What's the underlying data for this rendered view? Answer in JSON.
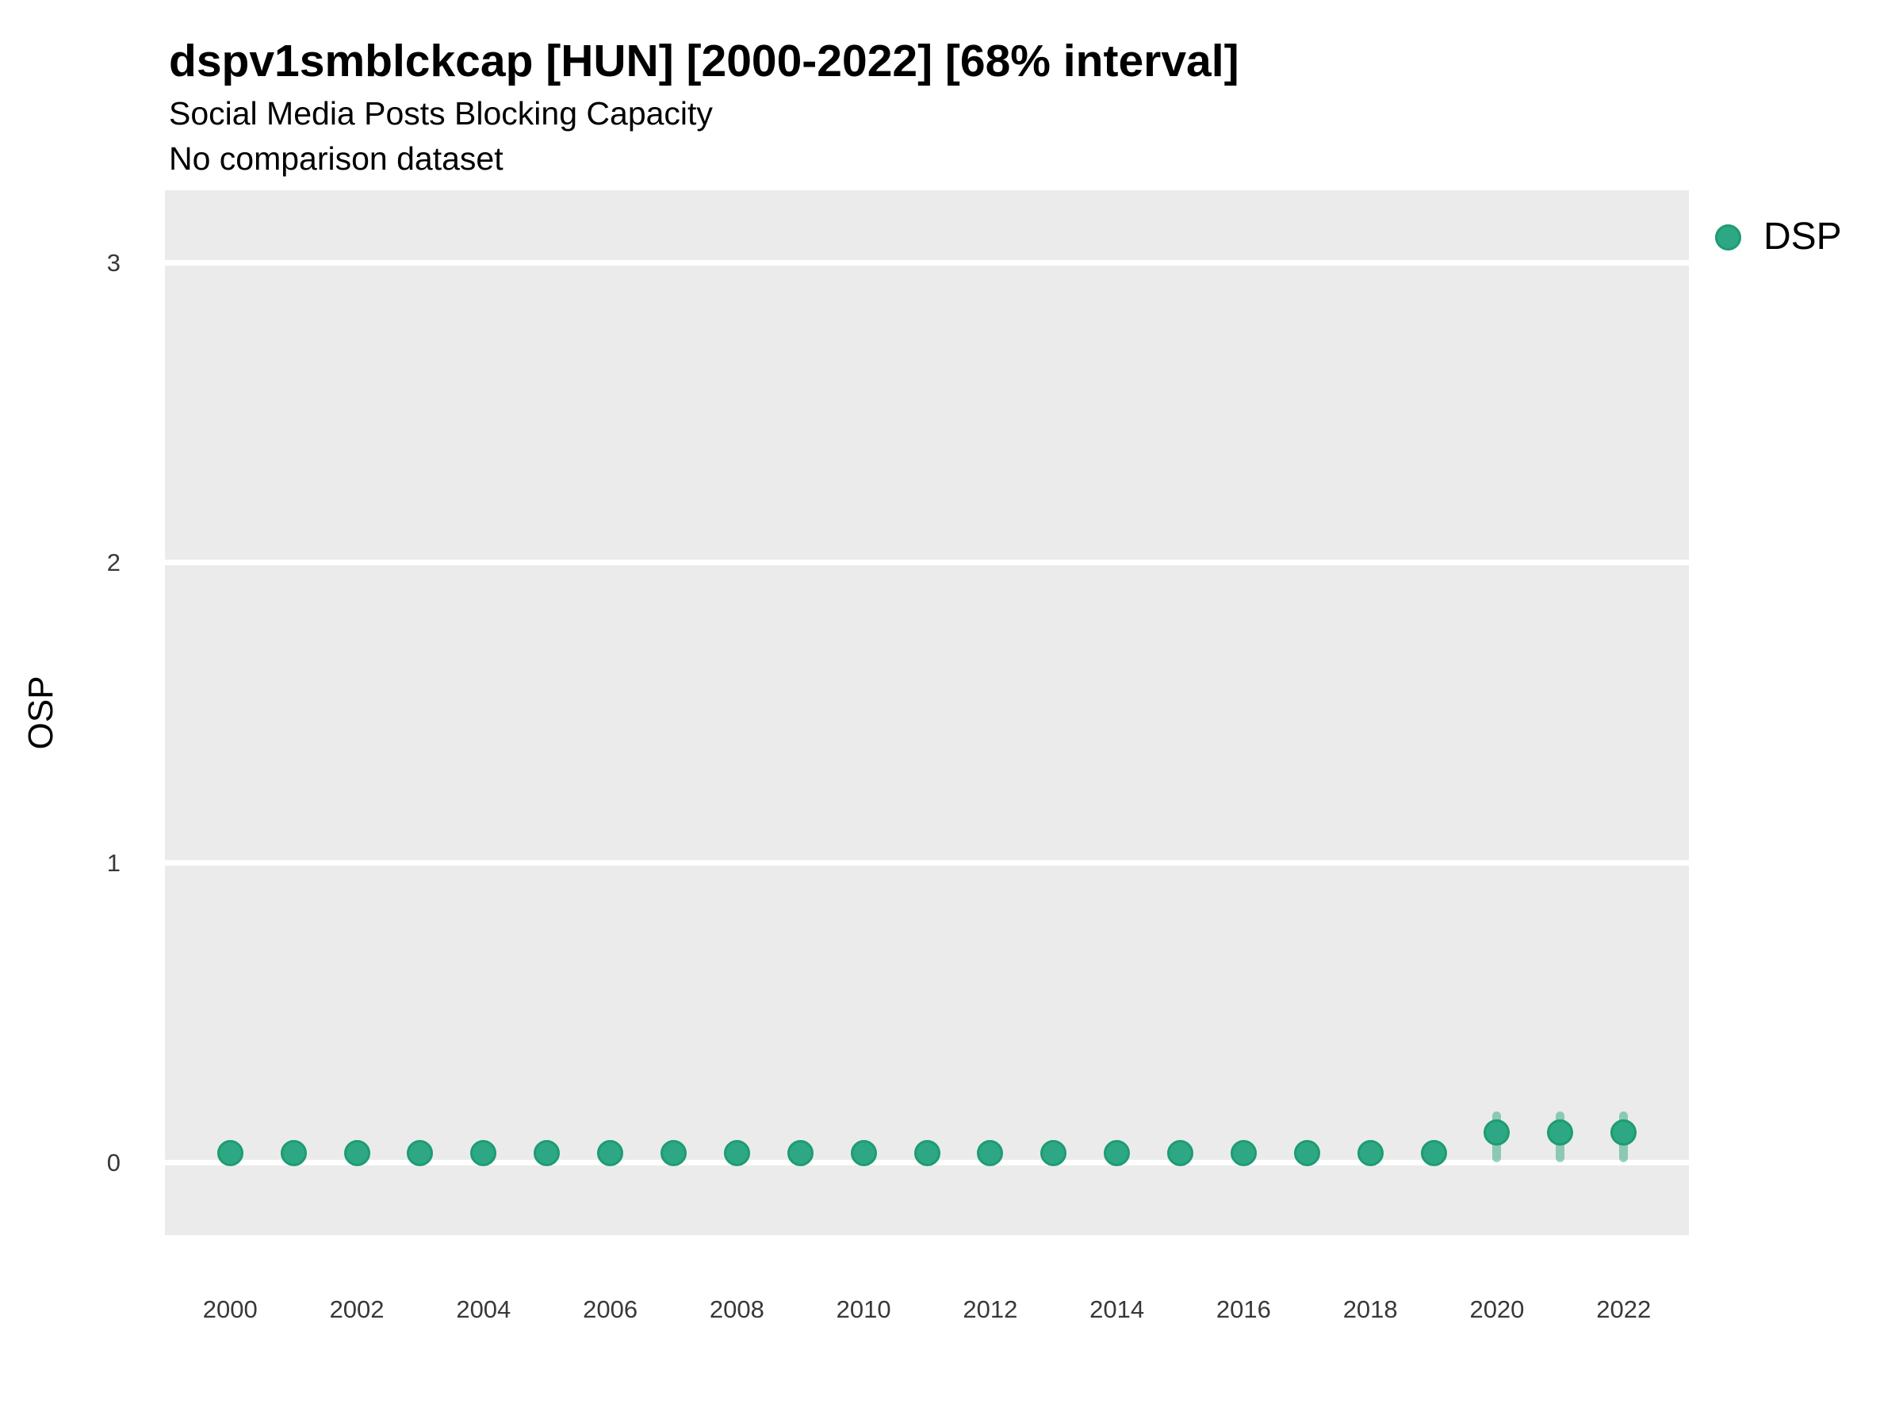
{
  "header": {
    "title": "dspv1smblckcap [HUN] [2000-2022] [68% interval]",
    "subtitle": "Social Media Posts Blocking Capacity",
    "note": "No comparison dataset"
  },
  "legend": {
    "position": "right",
    "items": [
      {
        "label": "DSP",
        "swatch": "circle"
      }
    ]
  },
  "colors": {
    "panel_background": "#EBEBEB",
    "gridline": "#FFFFFF",
    "point_fill": "#2EA884",
    "point_stroke": "#1D9C72",
    "interval_bar": "rgba(44, 167, 129, 0.5)",
    "tick_text": "#383838",
    "title_text": "#000000"
  },
  "chart_data": {
    "type": "scatter",
    "title": "dspv1smblckcap [HUN] [2000-2022] [68% interval]",
    "subtitle": "Social Media Posts Blocking Capacity",
    "note": "No comparison dataset",
    "interval_label": "68% interval",
    "xlabel": "",
    "ylabel": "OSP",
    "grid": "horizontal-major-only",
    "legend_position": "right",
    "xlim": [
      1998.97,
      2023.03
    ],
    "ylim": [
      -0.243,
      3.243
    ],
    "x_ticks": [
      2000,
      2002,
      2004,
      2006,
      2008,
      2010,
      2012,
      2014,
      2016,
      2018,
      2020,
      2022
    ],
    "y_ticks": [
      0,
      1,
      2,
      3
    ],
    "series": [
      {
        "name": "DSP",
        "points": [
          {
            "year": 2000,
            "y": 0.03,
            "lo": null,
            "hi": null
          },
          {
            "year": 2001,
            "y": 0.03,
            "lo": null,
            "hi": null
          },
          {
            "year": 2002,
            "y": 0.03,
            "lo": null,
            "hi": null
          },
          {
            "year": 2003,
            "y": 0.03,
            "lo": null,
            "hi": null
          },
          {
            "year": 2004,
            "y": 0.03,
            "lo": null,
            "hi": null
          },
          {
            "year": 2005,
            "y": 0.03,
            "lo": null,
            "hi": null
          },
          {
            "year": 2006,
            "y": 0.03,
            "lo": null,
            "hi": null
          },
          {
            "year": 2007,
            "y": 0.03,
            "lo": null,
            "hi": null
          },
          {
            "year": 2008,
            "y": 0.03,
            "lo": null,
            "hi": null
          },
          {
            "year": 2009,
            "y": 0.03,
            "lo": null,
            "hi": null
          },
          {
            "year": 2010,
            "y": 0.03,
            "lo": null,
            "hi": null
          },
          {
            "year": 2011,
            "y": 0.03,
            "lo": null,
            "hi": null
          },
          {
            "year": 2012,
            "y": 0.03,
            "lo": null,
            "hi": null
          },
          {
            "year": 2013,
            "y": 0.03,
            "lo": null,
            "hi": null
          },
          {
            "year": 2014,
            "y": 0.03,
            "lo": null,
            "hi": null
          },
          {
            "year": 2015,
            "y": 0.03,
            "lo": null,
            "hi": null
          },
          {
            "year": 2016,
            "y": 0.03,
            "lo": null,
            "hi": null
          },
          {
            "year": 2017,
            "y": 0.03,
            "lo": null,
            "hi": null
          },
          {
            "year": 2018,
            "y": 0.03,
            "lo": null,
            "hi": null
          },
          {
            "year": 2019,
            "y": 0.03,
            "lo": null,
            "hi": null
          },
          {
            "year": 2020,
            "y": 0.1,
            "lo": 0.0,
            "hi": 0.17
          },
          {
            "year": 2021,
            "y": 0.1,
            "lo": 0.0,
            "hi": 0.17
          },
          {
            "year": 2022,
            "y": 0.1,
            "lo": 0.0,
            "hi": 0.17
          }
        ]
      }
    ]
  }
}
